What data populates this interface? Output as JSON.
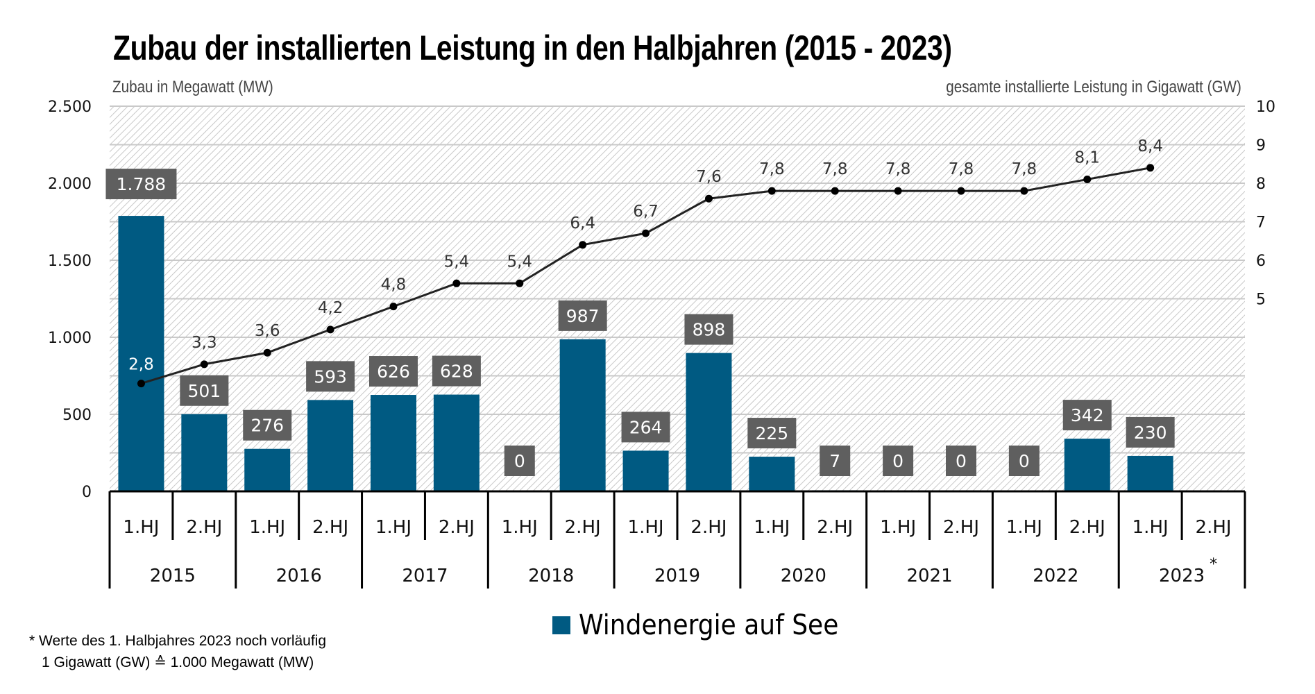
{
  "chart_data": {
    "type": "bar+line",
    "title": "Zubau der installierten Leistung in den Halbjahren (2015 - 2023)",
    "ylabel_left": "Zubau in Megawatt (MW)",
    "ylabel_right": "gesamte installierte Leistung in Gigawatt (GW)",
    "left_axis": {
      "min": 0,
      "max": 2500,
      "step": 500,
      "tick_labels": [
        "0",
        "500",
        "1.000",
        "1.500",
        "2.000",
        "2.500"
      ]
    },
    "right_axis": {
      "min": 0,
      "max": 10,
      "visible_ticks": [
        5,
        6,
        7,
        8,
        9,
        10
      ],
      "tick_labels": [
        "5",
        "6",
        "7",
        "8",
        "9",
        "10"
      ]
    },
    "grid": true,
    "years": [
      "2015",
      "2016",
      "2017",
      "2018",
      "2019",
      "2020",
      "2021",
      "2022",
      "2023*"
    ],
    "halfyears": [
      "1.HJ",
      "2.HJ"
    ],
    "categories": [
      "2015 1.HJ",
      "2015 2.HJ",
      "2016 1.HJ",
      "2016 2.HJ",
      "2017 1.HJ",
      "2017 2.HJ",
      "2018 1.HJ",
      "2018 2.HJ",
      "2019 1.HJ",
      "2019 2.HJ",
      "2020 1.HJ",
      "2020 2.HJ",
      "2021 1.HJ",
      "2021 2.HJ",
      "2022 1.HJ",
      "2022 2.HJ",
      "2023 1.HJ",
      "2023 2.HJ"
    ],
    "series": [
      {
        "name": "Windenergie auf See",
        "type": "bar",
        "axis": "left",
        "color": "#005a82",
        "values": [
          1788,
          501,
          276,
          593,
          626,
          628,
          0,
          987,
          264,
          898,
          225,
          7,
          0,
          0,
          0,
          342,
          230,
          null
        ],
        "labels": [
          "1.788",
          "501",
          "276",
          "593",
          "626",
          "628",
          "0",
          "987",
          "264",
          "898",
          "225",
          "7",
          "0",
          "0",
          "0",
          "342",
          "230",
          null
        ]
      },
      {
        "name": "gesamte installierte Leistung",
        "type": "line",
        "axis": "right",
        "color": "#222222",
        "values": [
          2.8,
          3.3,
          3.6,
          4.2,
          4.8,
          5.4,
          5.4,
          6.4,
          6.7,
          7.6,
          7.8,
          7.8,
          7.8,
          7.8,
          7.8,
          8.1,
          8.4,
          null
        ],
        "labels": [
          "2,8",
          "3,3",
          "3,6",
          "4,2",
          "4,8",
          "5,4",
          "5,4",
          "6,4",
          "6,7",
          "7,6",
          "7,8",
          "7,8",
          "7,8",
          "7,8",
          "7,8",
          "8,1",
          "8,4",
          null
        ]
      }
    ],
    "label_box_color": "#5f5f5f",
    "legend": {
      "position": "bottom-center",
      "entries": [
        "Windenergie auf See"
      ]
    },
    "footnotes": [
      "* Werte des 1. Halbjahres 2023 noch vorläufig",
      "1 Gigawatt (GW) ≙ 1.000 Megawatt (MW)"
    ]
  }
}
